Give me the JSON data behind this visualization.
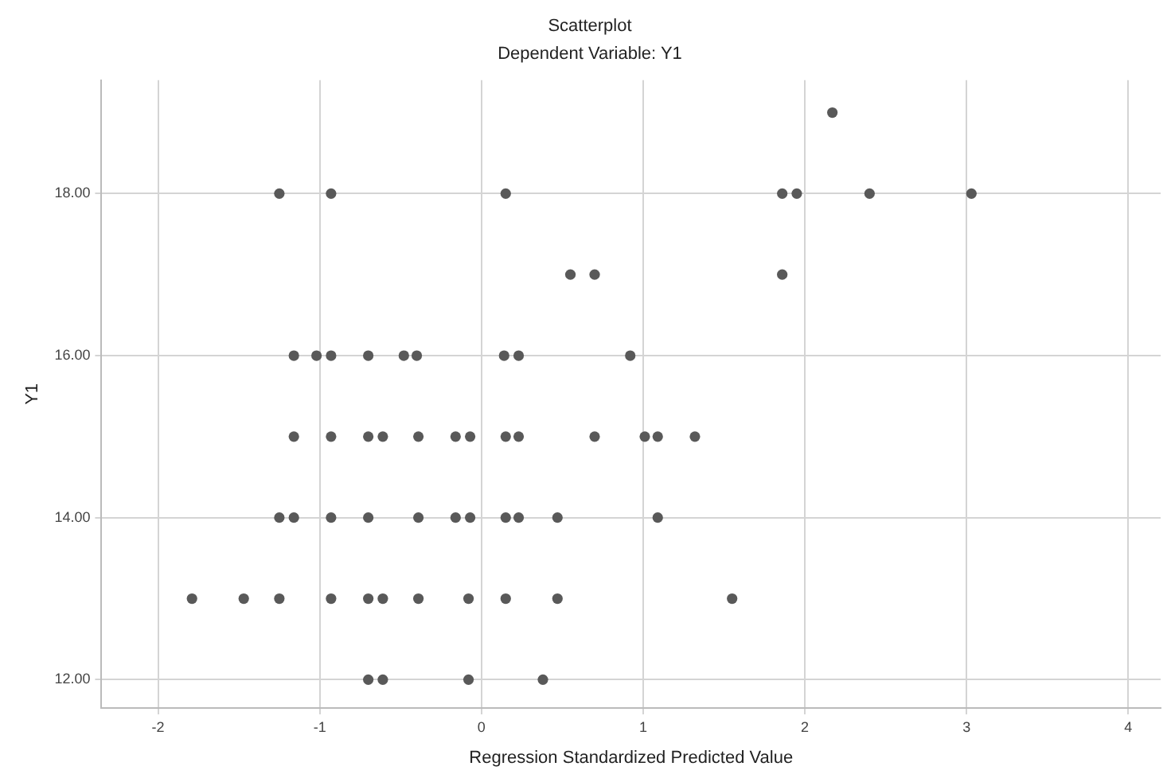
{
  "chart_data": {
    "type": "scatter",
    "title": "Scatterplot",
    "subtitle": "Dependent Variable: Y1",
    "xlabel": "Regression Standardized Predicted Value",
    "ylabel": "Y1",
    "xlim": [
      -2.35,
      4.2
    ],
    "xticks": [
      -2,
      -1,
      0,
      1,
      2,
      3,
      4
    ],
    "ylim": [
      11.65,
      19.4
    ],
    "yticks": [
      {
        "value": 12,
        "label": "12.00"
      },
      {
        "value": 14,
        "label": "14.00"
      },
      {
        "value": 16,
        "label": "16.00"
      },
      {
        "value": 18,
        "label": "18.00"
      }
    ],
    "grid": true,
    "legend": false,
    "marker": "circle",
    "series": [
      {
        "color": "#595959",
        "x": [
          -1.25,
          -0.93,
          0.15,
          1.86,
          1.95,
          2.4,
          3.03,
          2.17,
          0.55,
          0.7,
          1.86,
          -1.16,
          -1.02,
          -0.93,
          -0.7,
          -0.48,
          -0.4,
          0.14,
          0.23,
          0.92,
          -1.16,
          -0.93,
          -0.7,
          -0.61,
          -0.39,
          -0.16,
          -0.07,
          0.15,
          0.23,
          0.7,
          1.01,
          1.09,
          1.32,
          -1.25,
          -1.16,
          -0.93,
          -0.7,
          -0.39,
          -0.16,
          -0.07,
          0.15,
          0.23,
          0.47,
          1.09,
          -1.79,
          -1.47,
          -1.25,
          -0.93,
          -0.7,
          -0.61,
          -0.39,
          -0.08,
          0.15,
          0.47,
          1.55,
          -0.7,
          -0.61,
          -0.08,
          0.38
        ],
        "values": [
          18,
          18,
          18,
          18,
          18,
          18,
          18,
          19,
          17,
          17,
          17,
          16,
          16,
          16,
          16,
          16,
          16,
          16,
          16,
          16,
          15,
          15,
          15,
          15,
          15,
          15,
          15,
          15,
          15,
          15,
          15,
          15,
          15,
          14,
          14,
          14,
          14,
          14,
          14,
          14,
          14,
          14,
          14,
          14,
          13,
          13,
          13,
          13,
          13,
          13,
          13,
          13,
          13,
          13,
          13,
          12,
          12,
          12,
          12
        ]
      }
    ]
  }
}
